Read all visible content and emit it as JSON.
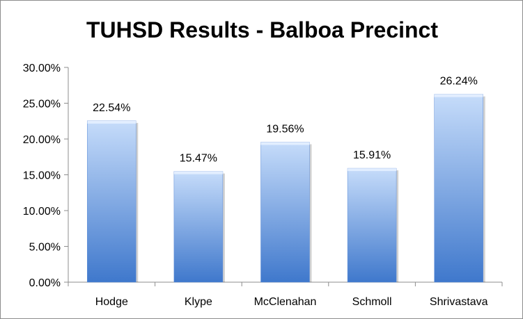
{
  "chart_data": {
    "type": "bar",
    "title": "TUHSD Results - Balboa Precinct",
    "categories": [
      "Hodge",
      "Klype",
      "McClenahan",
      "Schmoll",
      "Shrivastava"
    ],
    "values": [
      22.54,
      15.47,
      19.56,
      15.91,
      26.24
    ],
    "data_labels": [
      "22.54%",
      "15.47%",
      "19.56%",
      "15.91%",
      "26.24%"
    ],
    "y_ticks": [
      0,
      5,
      10,
      15,
      20,
      25,
      30
    ],
    "y_tick_labels": [
      "0.00%",
      "5.00%",
      "10.00%",
      "15.00%",
      "20.00%",
      "25.00%",
      "30.00%"
    ],
    "ylim": [
      0,
      30
    ],
    "xlabel": "",
    "ylabel": "",
    "grid": false,
    "legend": "none",
    "colors": {
      "bar_light": "#c6dcfa",
      "bar_dark": "#3f78cc",
      "axis": "#8c8c8c",
      "text": "#000000"
    }
  }
}
